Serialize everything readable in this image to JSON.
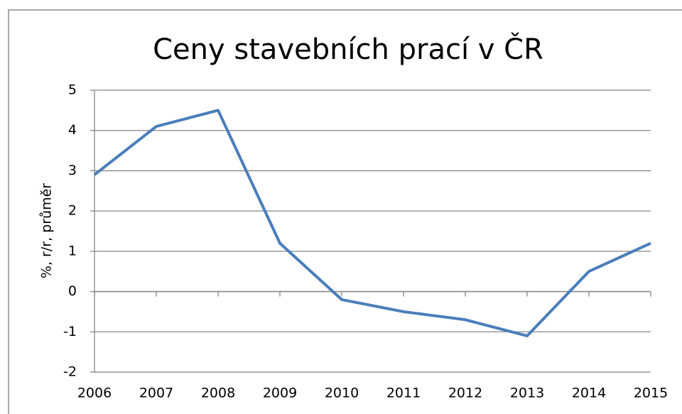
{
  "chart_data": {
    "type": "line",
    "title": "Ceny stavebních prací v ČR",
    "y_label": "%, r/r, průměr",
    "categories": [
      "2006",
      "2007",
      "2008",
      "2009",
      "2010",
      "2011",
      "2012",
      "2013",
      "2014",
      "2015"
    ],
    "series": [
      {
        "name": "Ceny stavebních prací",
        "color": "#4a7ebb",
        "values": [
          2.9,
          4.1,
          4.5,
          1.2,
          -0.2,
          -0.5,
          -0.7,
          -1.1,
          0.5,
          1.2
        ]
      }
    ],
    "ylim": [
      -2,
      5
    ],
    "yticks": [
      -2,
      -1,
      0,
      1,
      2,
      3,
      4,
      5
    ],
    "grid": true,
    "legend": false
  }
}
